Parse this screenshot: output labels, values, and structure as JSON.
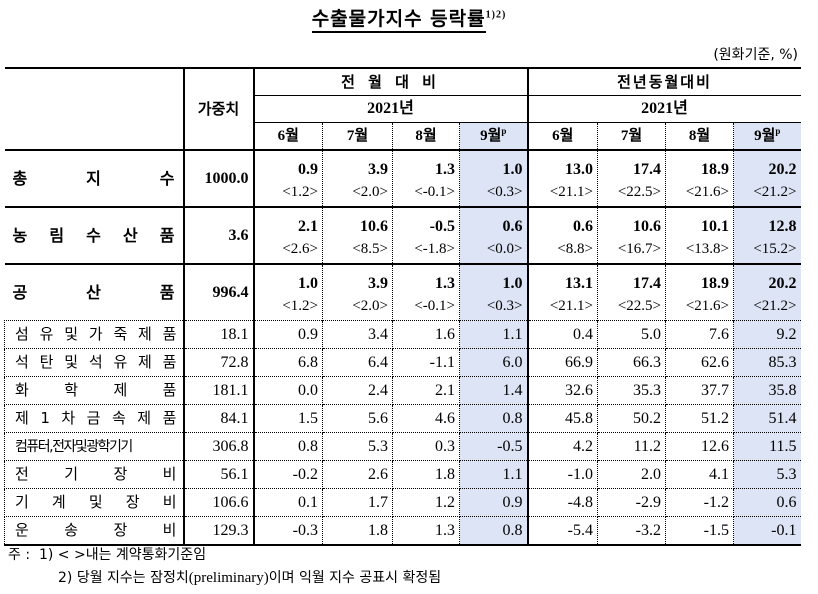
{
  "title": "수출물가지수 등락률",
  "title_superscript": "1)2)",
  "unit": "(원화기준, %)",
  "header": {
    "weight_label": "가중치",
    "groups": [
      {
        "label": "전 월 대 비",
        "year": "2021년",
        "months": [
          "6월",
          "7월",
          "8월",
          "9월"
        ],
        "preliminary_mark": "p"
      },
      {
        "label": "전년동월대비",
        "year": "2021년",
        "months": [
          "6월",
          "7월",
          "8월",
          "9월"
        ],
        "preliminary_mark": "p"
      }
    ]
  },
  "major_rows": [
    {
      "label_chars": [
        "총",
        "지",
        "수"
      ],
      "label": "총지수",
      "weight": "1000.0",
      "mom": [
        "0.9",
        "3.9",
        "1.3",
        "1.0"
      ],
      "mom_contract": [
        "<1.2>",
        "<2.0>",
        "<-0.1>",
        "<0.3>"
      ],
      "yoy": [
        "13.0",
        "17.4",
        "18.9",
        "20.2"
      ],
      "yoy_contract": [
        "<21.1>",
        "<22.5>",
        "<21.6>",
        "<21.2>"
      ]
    },
    {
      "label_chars": [
        "농",
        "림",
        "수",
        "산",
        "품"
      ],
      "label": "농림수산품",
      "weight": "3.6",
      "mom": [
        "2.1",
        "10.6",
        "-0.5",
        "0.6"
      ],
      "mom_contract": [
        "<2.6>",
        "<8.5>",
        "<-1.8>",
        "<0.0>"
      ],
      "yoy": [
        "0.6",
        "10.6",
        "10.1",
        "12.8"
      ],
      "yoy_contract": [
        "<8.8>",
        "<16.7>",
        "<13.8>",
        "<15.2>"
      ]
    },
    {
      "label_chars": [
        "공",
        "산",
        "품"
      ],
      "label": "공산품",
      "weight": "996.4",
      "mom": [
        "1.0",
        "3.9",
        "1.3",
        "1.0"
      ],
      "mom_contract": [
        "<1.2>",
        "<2.0>",
        "<-0.1>",
        "<0.3>"
      ],
      "yoy": [
        "13.1",
        "17.4",
        "18.9",
        "20.2"
      ],
      "yoy_contract": [
        "<21.1>",
        "<22.5>",
        "<21.6>",
        "<21.2>"
      ]
    }
  ],
  "sub_rows": [
    {
      "label_chars": [
        "섬",
        "유",
        "및",
        "가",
        "죽",
        "제",
        "품"
      ],
      "label": "섬유및가죽제품",
      "weight": "18.1",
      "mom": [
        "0.9",
        "3.4",
        "1.6",
        "1.1"
      ],
      "yoy": [
        "0.4",
        "5.0",
        "7.6",
        "9.2"
      ]
    },
    {
      "label_chars": [
        "석",
        "탄",
        "및",
        "석",
        "유",
        "제",
        "품"
      ],
      "label": "석탄및석유제품",
      "weight": "72.8",
      "mom": [
        "6.8",
        "6.4",
        "-1.1",
        "6.0"
      ],
      "yoy": [
        "66.9",
        "66.3",
        "62.6",
        "85.3"
      ]
    },
    {
      "label_chars": [
        "화",
        "학",
        "제",
        "품"
      ],
      "label": "화학제품",
      "weight": "181.1",
      "mom": [
        "0.0",
        "2.4",
        "2.1",
        "1.4"
      ],
      "yoy": [
        "32.6",
        "35.3",
        "37.7",
        "35.8"
      ]
    },
    {
      "label_chars": [
        "제",
        "1",
        "차",
        "금",
        "속",
        "제",
        "품"
      ],
      "label": "제1차금속제품",
      "weight": "84.1",
      "mom": [
        "1.5",
        "5.6",
        "4.6",
        "0.8"
      ],
      "yoy": [
        "45.8",
        "50.2",
        "51.2",
        "51.4"
      ]
    },
    {
      "label_chars": [
        "컴퓨터,전자및광학기기"
      ],
      "label": "컴퓨터,전자및광학기기",
      "weight": "306.8",
      "mom": [
        "0.8",
        "5.3",
        "0.3",
        "-0.5"
      ],
      "yoy": [
        "4.2",
        "11.2",
        "12.6",
        "11.5"
      ]
    },
    {
      "label_chars": [
        "전",
        "기",
        "장",
        "비"
      ],
      "label": "전기장비",
      "weight": "56.1",
      "mom": [
        "-0.2",
        "2.6",
        "1.8",
        "1.1"
      ],
      "yoy": [
        "-1.0",
        "2.0",
        "4.1",
        "5.3"
      ]
    },
    {
      "label_chars": [
        "기",
        "계",
        "및",
        "장",
        "비"
      ],
      "label": "기계및장비",
      "weight": "106.6",
      "mom": [
        "0.1",
        "1.7",
        "1.2",
        "0.9"
      ],
      "yoy": [
        "-4.8",
        "-2.9",
        "-1.2",
        "0.6"
      ]
    },
    {
      "label_chars": [
        "운",
        "송",
        "장",
        "비"
      ],
      "label": "운송장비",
      "weight": "129.3",
      "mom": [
        "-0.3",
        "1.8",
        "1.3",
        "0.8"
      ],
      "yoy": [
        "-5.4",
        "-3.2",
        "-1.5",
        "-0.1"
      ]
    }
  ],
  "notes": {
    "prefix": "주 :",
    "note1": "1) < >내는 계약통화기준임",
    "note2_a": "2) 당월 지수는 잠정치",
    "note2_b": "(preliminary)",
    "note2_c": "이며 익월 지수 공표시 확정됨"
  },
  "colors": {
    "highlight": "#dde4f5",
    "text": "#000000"
  }
}
